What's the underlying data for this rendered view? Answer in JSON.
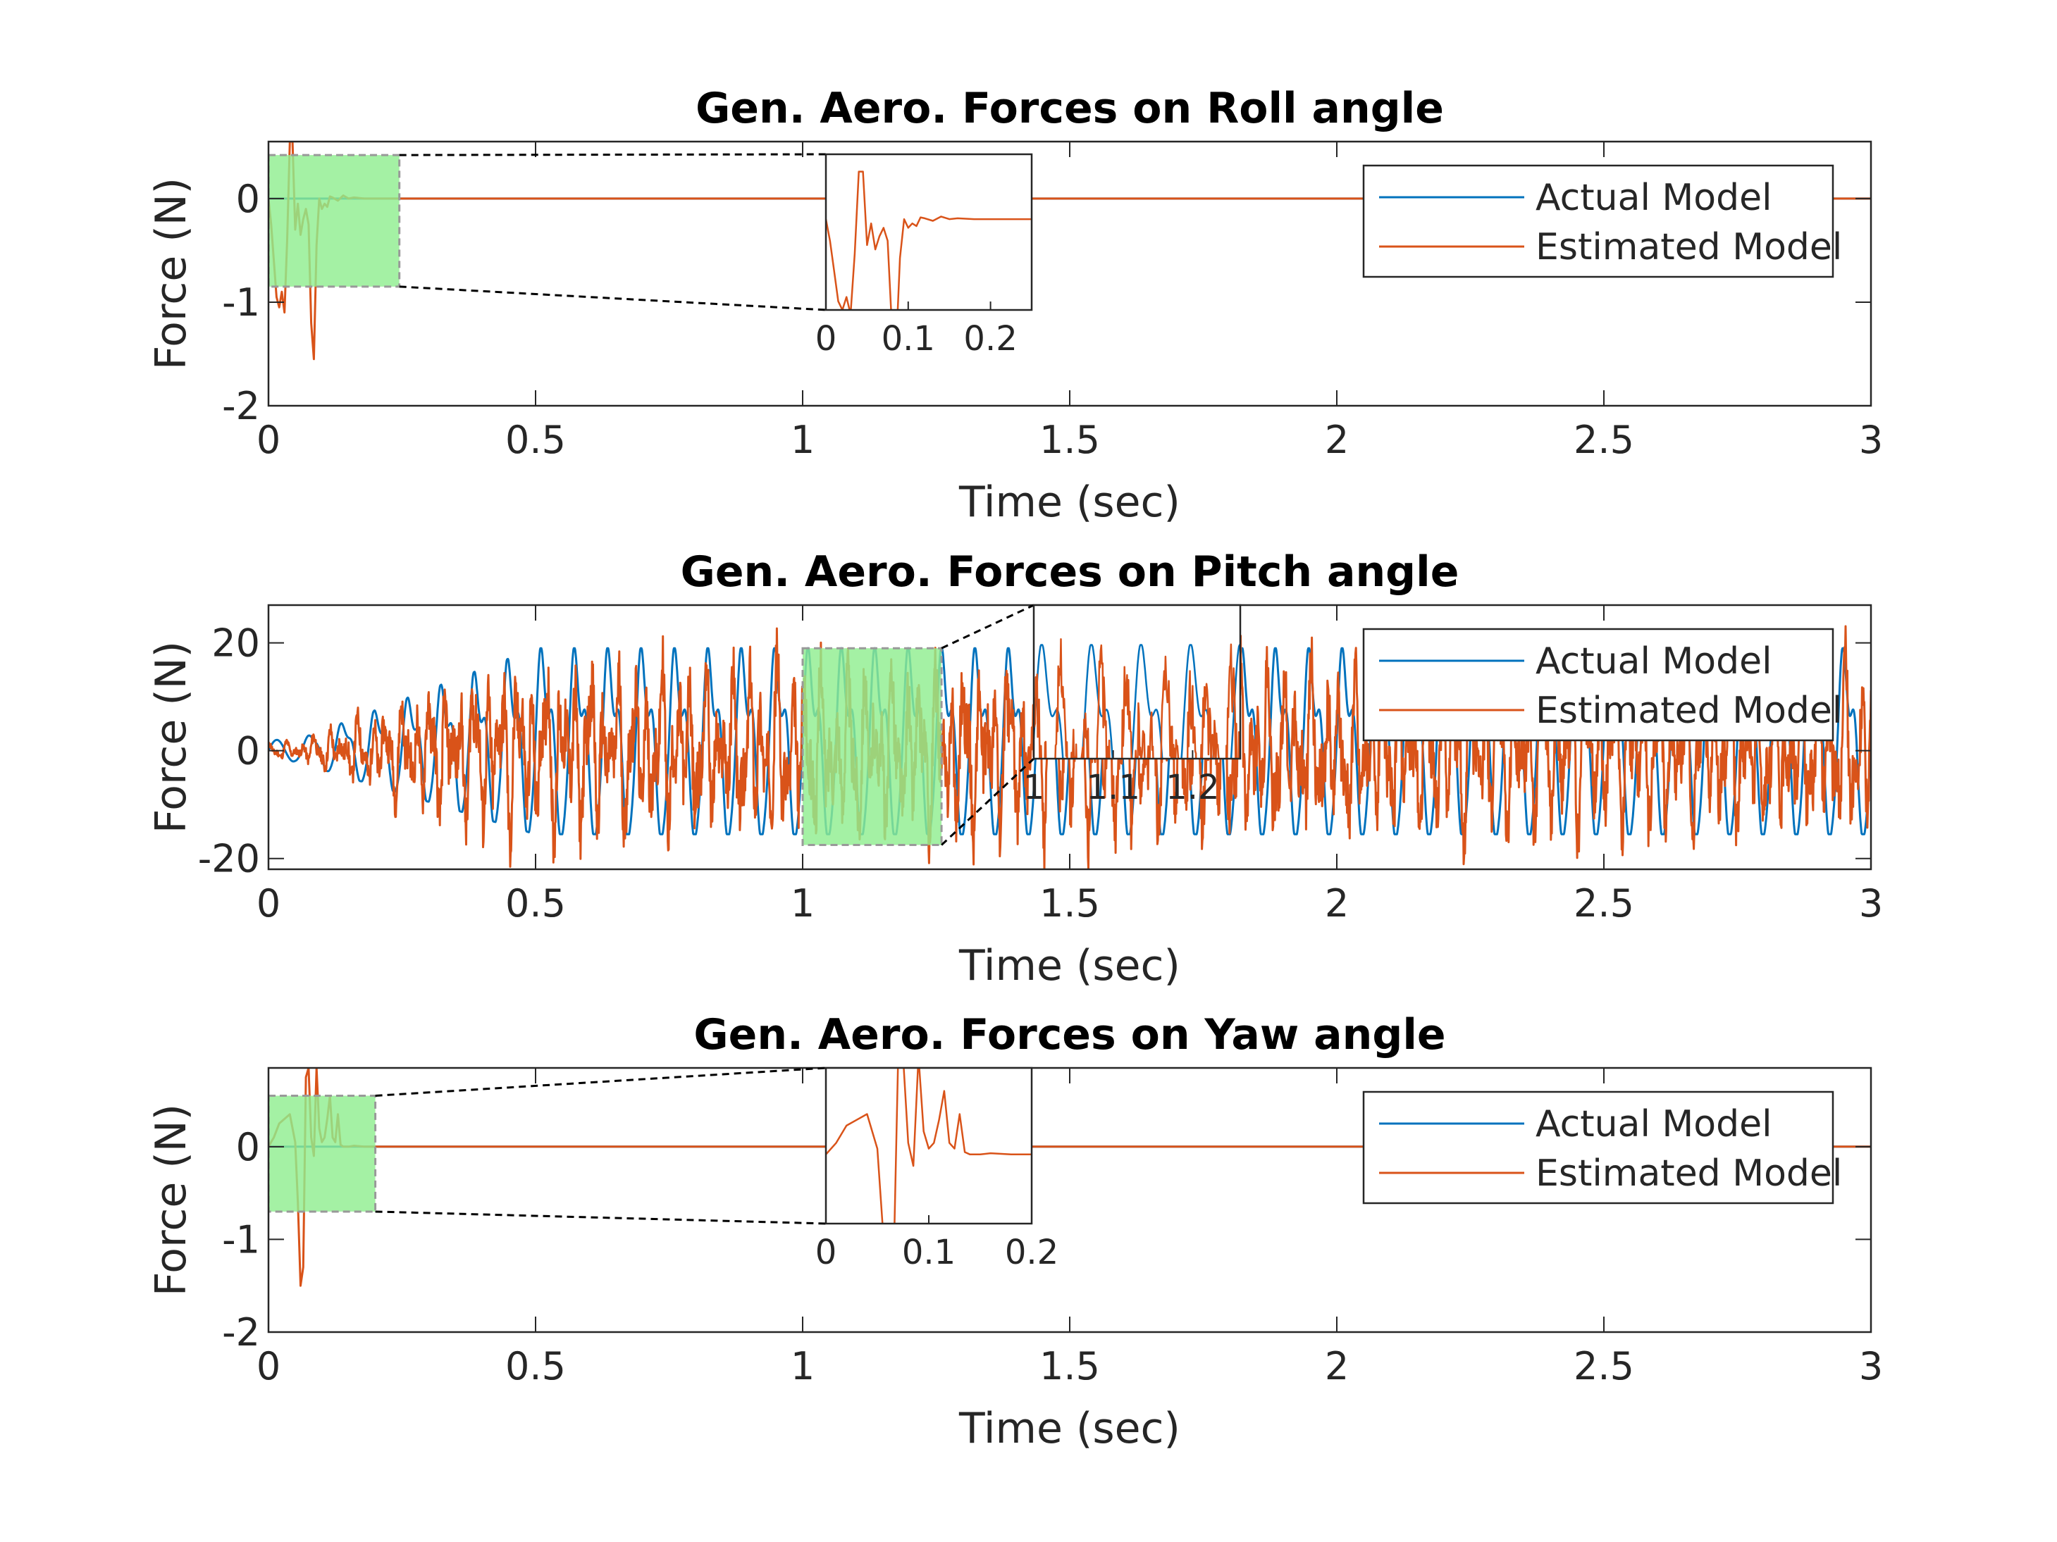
{
  "figure": {
    "colors": {
      "actual": "#0072BD",
      "estimated": "#D95319",
      "zoom_fill": "#90EE90",
      "axes": "#262626"
    }
  },
  "chart_data": [
    {
      "type": "line",
      "title": "Gen. Aero. Forces on Roll angle",
      "xlabel": "Time (sec)",
      "ylabel": "Force (N)",
      "xlim": [
        0,
        3
      ],
      "ylim": [
        -2,
        0.55
      ],
      "xticks": [
        0,
        0.5,
        1,
        1.5,
        2,
        2.5,
        3
      ],
      "xtick_labels": [
        "0",
        "0.5",
        "1",
        "1.5",
        "2",
        "2.5",
        "3"
      ],
      "yticks": [
        -2,
        -1,
        0
      ],
      "ytick_labels": [
        "-2",
        "-1",
        "0"
      ],
      "legend": {
        "entries": [
          "Actual Model",
          "Estimated Model"
        ],
        "location": "top-right"
      },
      "series": [
        {
          "name": "Actual Model",
          "x": [
            0,
            3
          ],
          "y": [
            0,
            0
          ]
        },
        {
          "name": "Estimated Model",
          "x": [
            0,
            0.005,
            0.01,
            0.015,
            0.02,
            0.025,
            0.03,
            0.035,
            0.04,
            0.045,
            0.05,
            0.055,
            0.06,
            0.065,
            0.07,
            0.075,
            0.08,
            0.085,
            0.09,
            0.095,
            0.1,
            0.105,
            0.11,
            0.115,
            0.12,
            0.13,
            0.14,
            0.15,
            0.16,
            0.18,
            0.2,
            0.25,
            3
          ],
          "y": [
            0,
            -0.25,
            -0.6,
            -0.95,
            -1.05,
            -0.9,
            -1.1,
            -0.4,
            0.55,
            0.55,
            -0.3,
            -0.05,
            -0.35,
            -0.2,
            -0.1,
            -0.25,
            -1.2,
            -1.55,
            -0.45,
            0.0,
            -0.1,
            -0.05,
            -0.08,
            0.02,
            0.01,
            -0.02,
            0.03,
            0.0,
            0.01,
            0.0,
            0.0,
            0.0,
            0.0
          ]
        }
      ],
      "zoom": {
        "region_x": [
          0,
          0.245
        ],
        "region_y": [
          -0.85,
          0.42
        ],
        "inset_xlim": [
          0,
          0.25
        ],
        "inset_ylim": [
          -1.05,
          0.75
        ],
        "inset_xticks": [
          0,
          0.1,
          0.2
        ],
        "inset_xtick_labels": [
          "0",
          "0.1",
          "0.2"
        ]
      }
    },
    {
      "type": "line",
      "title": "Gen. Aero. Forces on Pitch angle",
      "xlabel": "Time (sec)",
      "ylabel": "Force (N)",
      "xlim": [
        0,
        3
      ],
      "ylim": [
        -22,
        27
      ],
      "xticks": [
        0,
        0.5,
        1,
        1.5,
        2,
        2.5,
        3
      ],
      "xtick_labels": [
        "0",
        "0.5",
        "1",
        "1.5",
        "2",
        "2.5",
        "3"
      ],
      "yticks": [
        -20,
        0,
        20
      ],
      "ytick_labels": [
        "-20",
        "0",
        "20"
      ],
      "legend": {
        "entries": [
          "Actual Model",
          "Estimated Model"
        ],
        "location": "top-right"
      },
      "series": [
        {
          "name": "Actual Model",
          "oscillation": {
            "frequency_hz": 16,
            "start": 0.05,
            "ramp_end": 0.5,
            "max": 19,
            "min": -15.5,
            "initial_amplitude": 2
          }
        },
        {
          "name": "Estimated Model",
          "oscillation": {
            "start": 0.05,
            "ramp_end": 0.45,
            "amplitude": 13,
            "peak_max": 25,
            "peak_min": -22
          }
        }
      ],
      "zoom": {
        "region_x": [
          1.0,
          1.26
        ],
        "region_y": [
          -17.5,
          19
        ],
        "inset_xlim": [
          1.0,
          1.26
        ],
        "inset_ylim": [
          -1,
          26
        ],
        "inset_xticks": [
          1,
          1.1,
          1.2
        ],
        "inset_xtick_labels": [
          "1",
          "1.1",
          "1.2"
        ]
      }
    },
    {
      "type": "line",
      "title": "Gen. Aero. Forces on Yaw angle",
      "xlabel": "Time (sec)",
      "ylabel": "Force  (N)",
      "xlim": [
        0,
        3
      ],
      "ylim": [
        -2,
        0.85
      ],
      "xticks": [
        0,
        0.5,
        1,
        1.5,
        2,
        2.5,
        3
      ],
      "xtick_labels": [
        "0",
        "0.5",
        "1",
        "1.5",
        "2",
        "2.5",
        "3"
      ],
      "yticks": [
        -2,
        -1,
        0
      ],
      "ytick_labels": [
        "-2",
        "-1",
        "0"
      ],
      "legend": {
        "entries": [
          "Actual Model",
          "Estimated Model"
        ],
        "location": "top-right"
      },
      "series": [
        {
          "name": "Actual Model",
          "x": [
            0,
            3
          ],
          "y": [
            0,
            0
          ]
        },
        {
          "name": "Estimated Model",
          "x": [
            0,
            0.01,
            0.02,
            0.03,
            0.04,
            0.05,
            0.055,
            0.06,
            0.065,
            0.07,
            0.075,
            0.08,
            0.085,
            0.09,
            0.095,
            0.1,
            0.105,
            0.11,
            0.115,
            0.12,
            0.125,
            0.13,
            0.135,
            0.14,
            0.15,
            0.16,
            0.18,
            0.2,
            3
          ],
          "y": [
            0,
            0.1,
            0.25,
            0.3,
            0.35,
            0.05,
            -0.6,
            -1.5,
            -1.3,
            0.75,
            0.85,
            0.1,
            -0.1,
            0.85,
            0.2,
            0.05,
            0.1,
            0.3,
            0.55,
            0.1,
            0.05,
            0.35,
            0.02,
            0.0,
            0.0,
            0.01,
            0.0,
            0.0,
            0.0
          ]
        }
      ],
      "zoom": {
        "region_x": [
          0,
          0.2
        ],
        "region_y": [
          -0.7,
          0.55
        ],
        "inset_xlim": [
          0,
          0.2
        ],
        "inset_ylim": [
          -0.6,
          0.75
        ],
        "inset_xticks": [
          0,
          0.1,
          0.2
        ],
        "inset_xtick_labels": [
          "0",
          "0.1",
          "0.2"
        ]
      }
    }
  ]
}
